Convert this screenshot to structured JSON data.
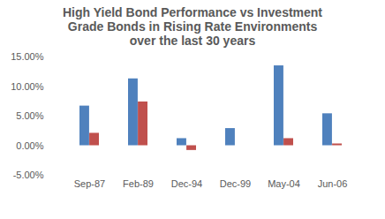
{
  "chart_data": {
    "type": "bar",
    "title": "High Yield Bond Performance vs Investment Grade Bonds in Rising Rate Environments over the last 30 years",
    "categories": [
      "Sep-87",
      "Feb-89",
      "Dec-94",
      "Dec-99",
      "May-04",
      "Jun-06"
    ],
    "series": [
      {
        "color": "#4f81bd",
        "values": [
          6.7,
          11.3,
          1.2,
          2.9,
          13.5,
          5.4
        ]
      },
      {
        "color": "#c0504d",
        "values": [
          2.1,
          7.4,
          -0.8,
          0,
          1.2,
          0.3
        ]
      }
    ],
    "ylim": [
      -5,
      15
    ],
    "yticks": [
      {
        "value": -5,
        "label": "-5.00%"
      },
      {
        "value": 0,
        "label": "0.00%"
      },
      {
        "value": 5,
        "label": "5.00%"
      },
      {
        "value": 10,
        "label": "10.00%"
      },
      {
        "value": 15,
        "label": "15.00%"
      }
    ],
    "grid": false
  }
}
